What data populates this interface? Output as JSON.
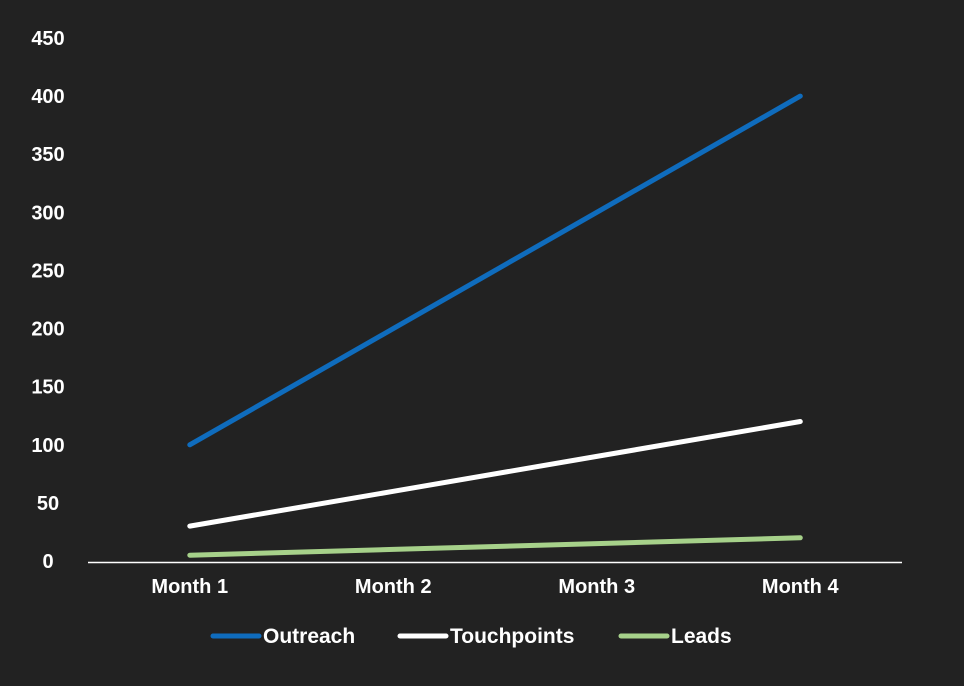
{
  "chart_data": {
    "type": "line",
    "title": "",
    "xlabel": "",
    "ylabel": "",
    "categories": [
      "Month 1",
      "Month 2",
      "Month 3",
      "Month 4"
    ],
    "ylim": [
      0,
      450
    ],
    "yticks": [
      0,
      50,
      100,
      150,
      200,
      250,
      300,
      350,
      400,
      450
    ],
    "grid": false,
    "legend_position": "bottom",
    "background": "#222222",
    "series": [
      {
        "name": "Outreach",
        "color": "#0f6cbd",
        "values": [
          100,
          200,
          300,
          400
        ]
      },
      {
        "name": "Touchpoints",
        "color": "#ffffff",
        "values": [
          30,
          60,
          90,
          120
        ]
      },
      {
        "name": "Leads",
        "color": "#a6d18a",
        "values": [
          5,
          10,
          15,
          20
        ]
      }
    ]
  }
}
